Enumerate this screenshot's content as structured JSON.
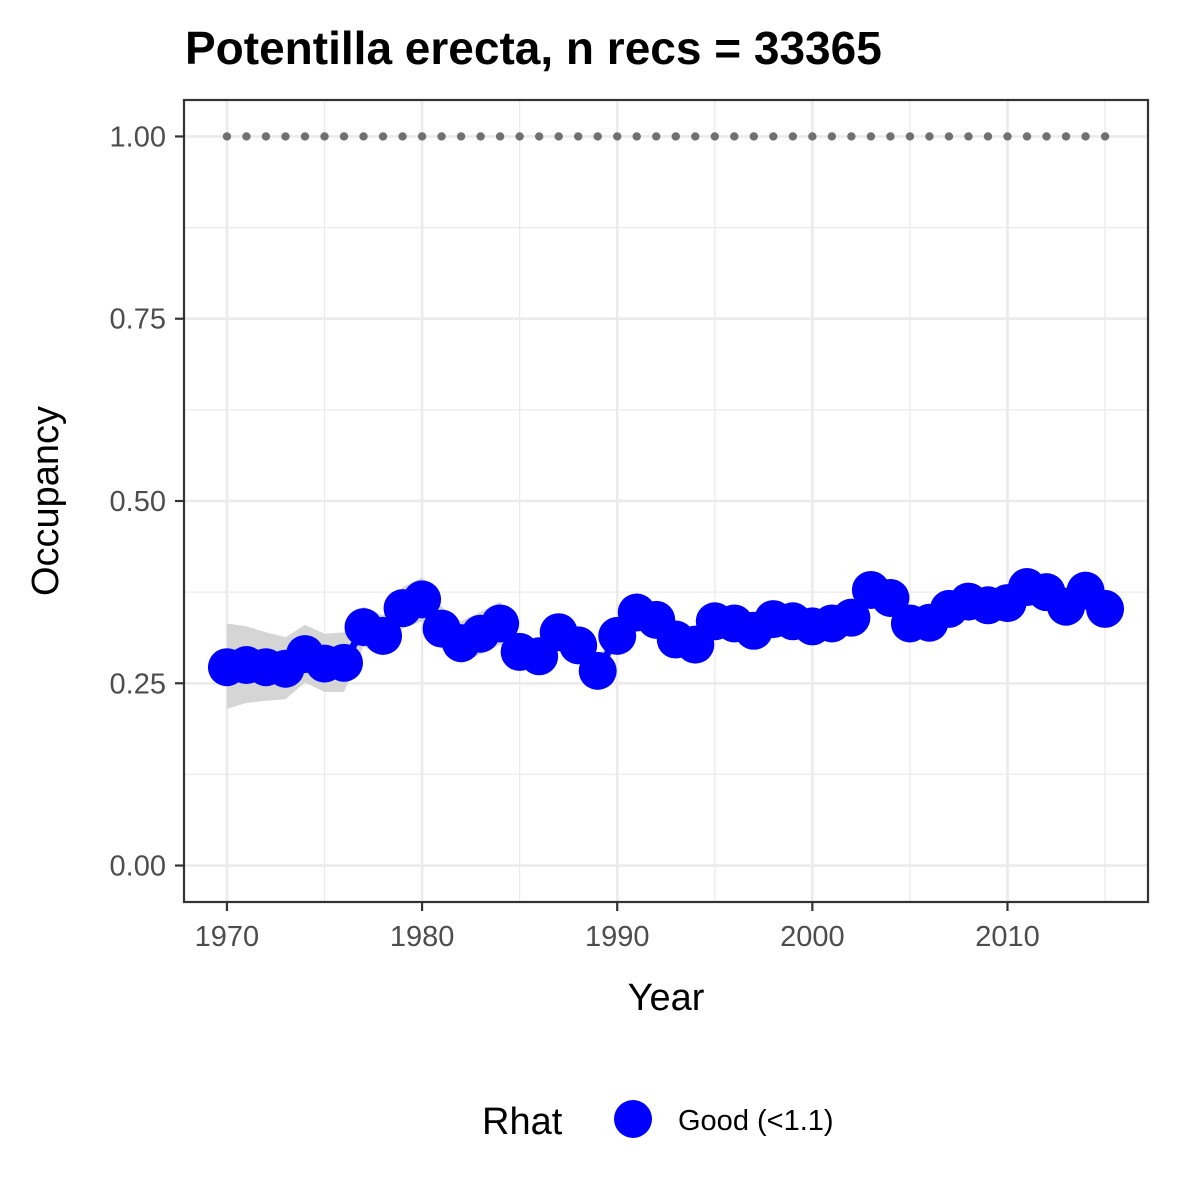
{
  "chart_data": {
    "type": "line",
    "title": "Potentilla erecta, n recs = 33365",
    "xlabel": "Year",
    "ylabel": "Occupancy",
    "xlim": [
      1967.8,
      1971.0
    ],
    "ylim": [
      -0.05,
      1.05
    ],
    "x_ticks": [
      1970,
      1980,
      1990,
      2000,
      2010
    ],
    "x_tick_labels": [
      "1970",
      "1980",
      "1990",
      "2000",
      "2010"
    ],
    "y_ticks": [
      0,
      0.25,
      0.5,
      0.75,
      1.0
    ],
    "y_tick_labels": [
      "0.00",
      "0.25",
      "0.50",
      "0.75",
      "1.00"
    ],
    "grid": true,
    "legend": {
      "title": "Rhat",
      "placement": "bottom",
      "entries": [
        {
          "label": "Good (<1.1)",
          "color": "#0000ff"
        }
      ]
    },
    "colors": {
      "series": "#0000ff",
      "ribbon": "#d3d3d3",
      "reference": "#707070",
      "grid": "#ebebeb",
      "frame": "#333333"
    },
    "x": [
      1970,
      1971,
      1972,
      1973,
      1974,
      1975,
      1976,
      1977,
      1978,
      1979,
      1980,
      1981,
      1982,
      1983,
      1984,
      1985,
      1986,
      1987,
      1988,
      1989,
      1990,
      1991,
      1992,
      1993,
      1994,
      1995,
      1996,
      1997,
      1998,
      1999,
      2000,
      2001,
      2002,
      2003,
      2004,
      2005,
      2006,
      2007,
      2008,
      2009,
      2010,
      2011,
      2012,
      2013,
      2014,
      2015
    ],
    "series": [
      {
        "name": "Good (<1.1)",
        "values": [
          0.272,
          0.275,
          0.272,
          0.27,
          0.29,
          0.277,
          0.278,
          0.327,
          0.315,
          0.353,
          0.365,
          0.325,
          0.305,
          0.318,
          0.332,
          0.293,
          0.287,
          0.32,
          0.302,
          0.267,
          0.315,
          0.347,
          0.337,
          0.31,
          0.303,
          0.335,
          0.332,
          0.322,
          0.338,
          0.335,
          0.328,
          0.332,
          0.34,
          0.378,
          0.367,
          0.332,
          0.333,
          0.352,
          0.362,
          0.357,
          0.36,
          0.382,
          0.375,
          0.355,
          0.377,
          0.352
        ],
        "lower": [
          0.215,
          0.223,
          0.226,
          0.228,
          0.251,
          0.238,
          0.238,
          0.3,
          0.288,
          0.325,
          0.335,
          0.297,
          0.277,
          0.29,
          0.303,
          0.272,
          0.268,
          0.3,
          0.283,
          0.253,
          0.3,
          0.331,
          0.321,
          0.295,
          0.289,
          0.321,
          0.318,
          0.308,
          0.324,
          0.321,
          0.314,
          0.318,
          0.326,
          0.363,
          0.352,
          0.318,
          0.319,
          0.338,
          0.348,
          0.343,
          0.346,
          0.367,
          0.36,
          0.341,
          0.362,
          0.338
        ],
        "upper": [
          0.332,
          0.328,
          0.32,
          0.313,
          0.33,
          0.318,
          0.32,
          0.355,
          0.343,
          0.382,
          0.395,
          0.355,
          0.335,
          0.348,
          0.362,
          0.316,
          0.308,
          0.341,
          0.322,
          0.282,
          0.331,
          0.364,
          0.354,
          0.326,
          0.318,
          0.35,
          0.347,
          0.337,
          0.353,
          0.35,
          0.343,
          0.347,
          0.355,
          0.394,
          0.383,
          0.347,
          0.348,
          0.367,
          0.377,
          0.372,
          0.375,
          0.398,
          0.391,
          0.37,
          0.393,
          0.367
        ]
      },
      {
        "name": "",
        "values": [
          1,
          1,
          1,
          1,
          1,
          1,
          1,
          1,
          1,
          1,
          1,
          1,
          1,
          1,
          1,
          1,
          1,
          1,
          1,
          1,
          1,
          1,
          1,
          1,
          1,
          1,
          1,
          1,
          1,
          1,
          1,
          1,
          1,
          1,
          1,
          1,
          1,
          1,
          1,
          1,
          1,
          1,
          1,
          1,
          1,
          1
        ]
      }
    ]
  }
}
